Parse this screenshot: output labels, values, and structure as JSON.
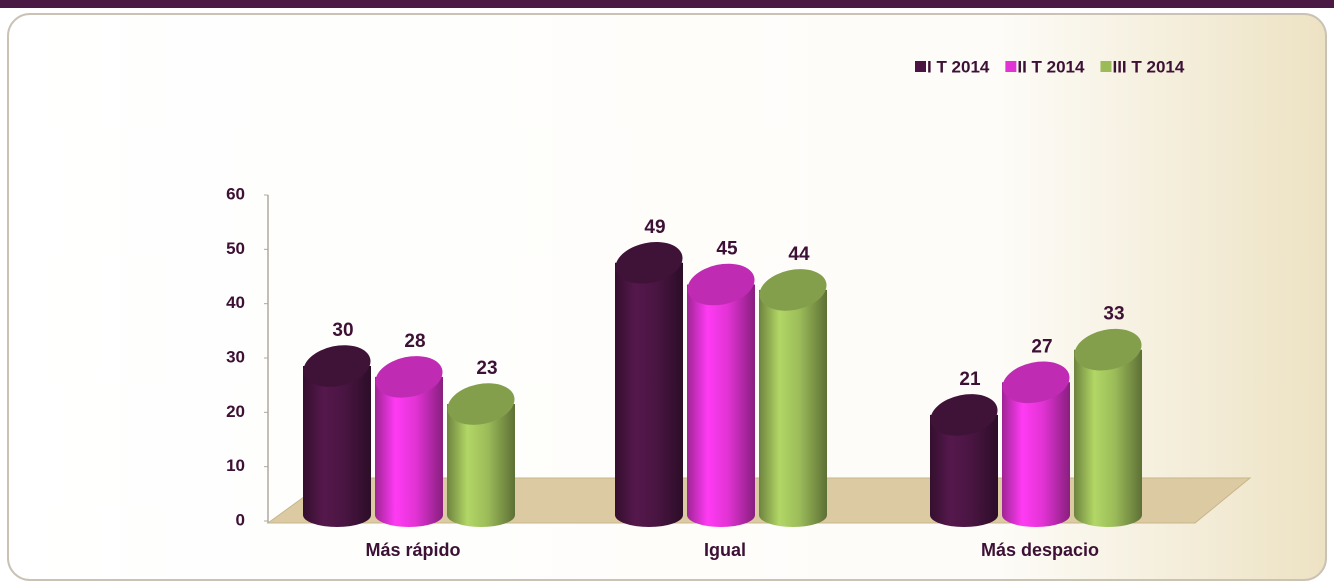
{
  "chart_data": {
    "type": "bar",
    "categories": [
      "Más rápido",
      "Igual",
      "Más despacio"
    ],
    "series": [
      {
        "name": "I T 2014",
        "color": "#4a1542",
        "values": [
          30,
          49,
          21
        ]
      },
      {
        "name": "II T 2014",
        "color": "#e233d4",
        "values": [
          28,
          45,
          27
        ]
      },
      {
        "name": "III T 2014",
        "color": "#9bbb59",
        "values": [
          23,
          44,
          33
        ]
      }
    ],
    "ylim": [
      0,
      60
    ],
    "yticks": [
      0,
      10,
      20,
      30,
      40,
      50,
      60
    ],
    "legend": "top-right"
  }
}
